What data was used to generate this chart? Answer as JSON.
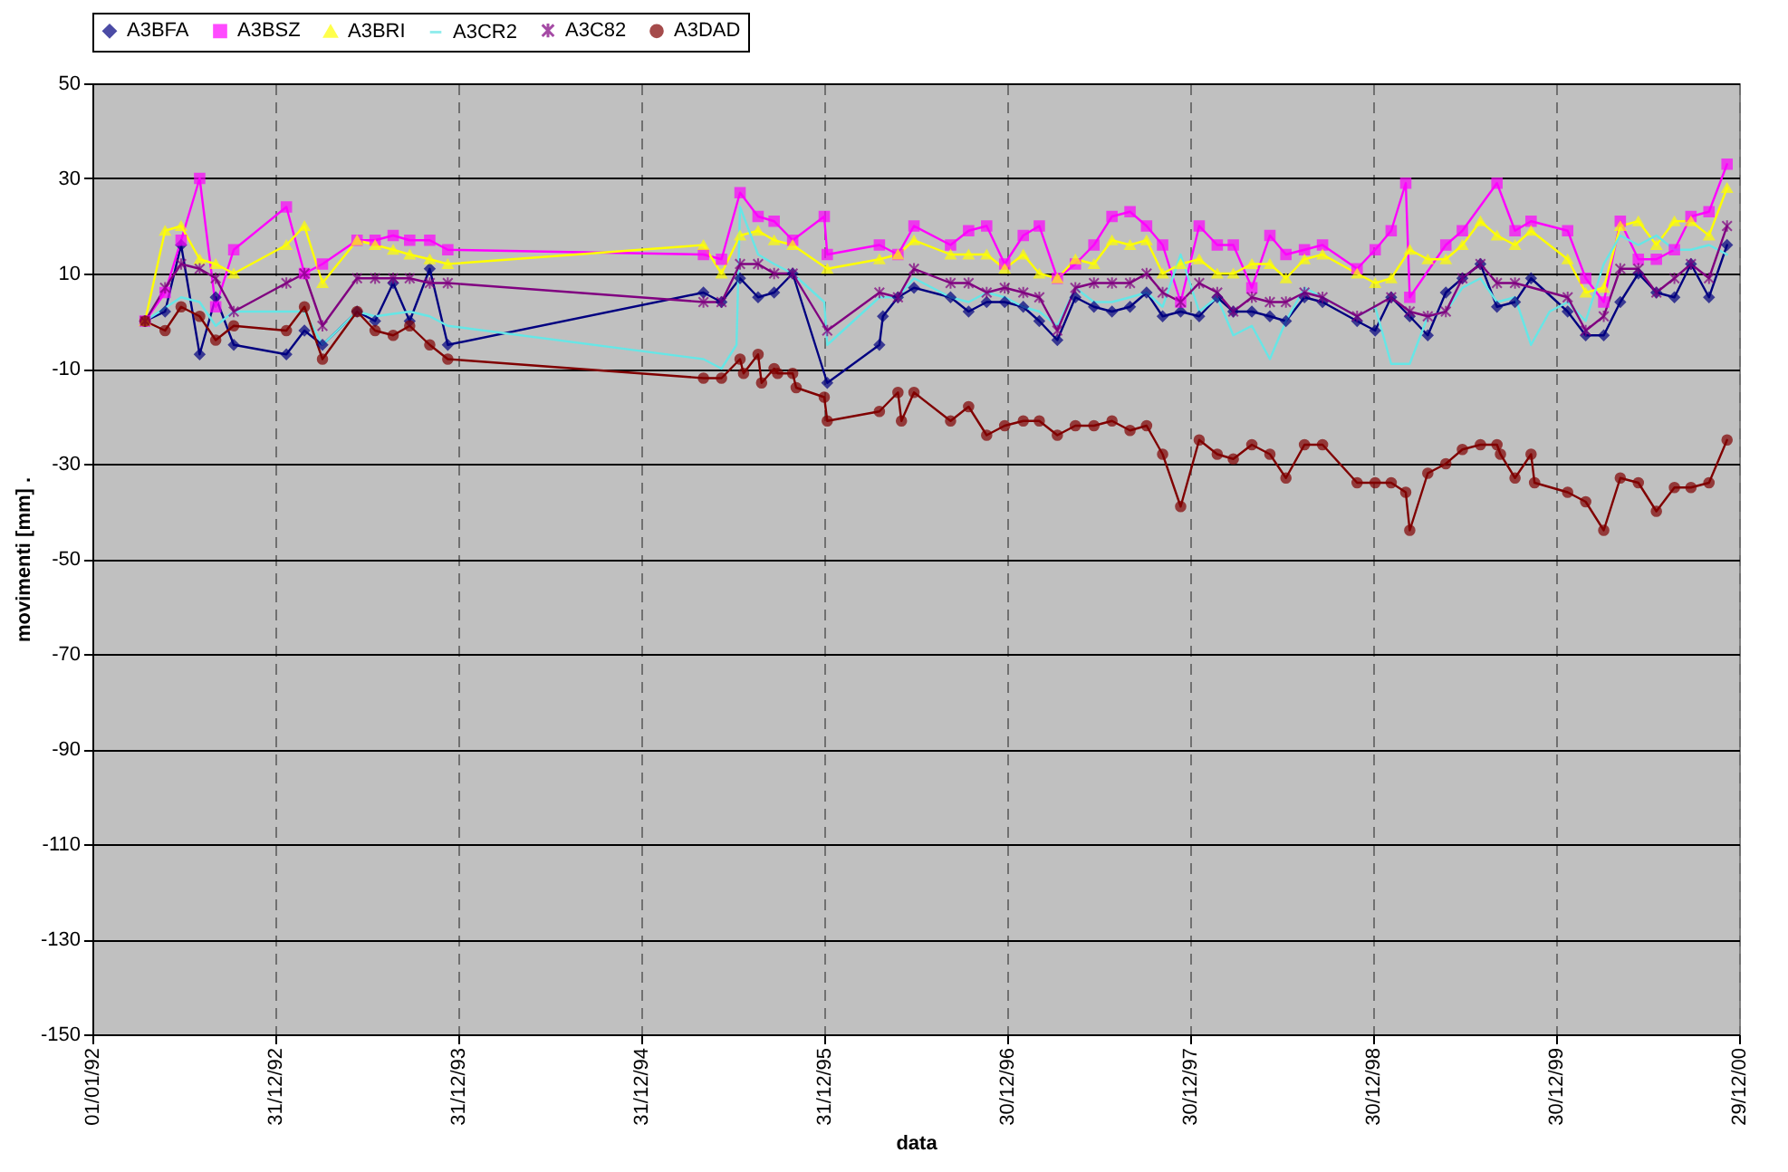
{
  "chart_data": {
    "type": "line",
    "xlabel": "data",
    "ylabel": "movimenti [mm] .",
    "legend": "top",
    "grid": true,
    "xlim": [
      "1992-01-01",
      "2000-12-29"
    ],
    "xticks": [
      {
        "value": "1992-01-01",
        "label": "01/01/92"
      },
      {
        "value": "1992-12-31",
        "label": "31/12/92"
      },
      {
        "value": "1993-12-31",
        "label": "31/12/93"
      },
      {
        "value": "1994-12-31",
        "label": "31/12/94"
      },
      {
        "value": "1995-12-31",
        "label": "31/12/95"
      },
      {
        "value": "1996-12-30",
        "label": "30/12/96"
      },
      {
        "value": "1997-12-30",
        "label": "30/12/97"
      },
      {
        "value": "1998-12-30",
        "label": "30/12/98"
      },
      {
        "value": "1999-12-30",
        "label": "30/12/99"
      },
      {
        "value": "2000-12-29",
        "label": "29/12/00"
      }
    ],
    "ylim": [
      -150,
      50
    ],
    "yticks": [
      -150,
      -130,
      -110,
      -90,
      -70,
      -50,
      -30,
      -10,
      10,
      30,
      50
    ],
    "series": [
      {
        "name": "A3BFA",
        "color": "#000080",
        "marker": "diamond",
        "x": [
          "1992-04-15",
          "1992-05-25",
          "1992-06-26",
          "1992-08-02",
          "1992-09-03",
          "1992-10-09",
          "1993-01-22",
          "1993-02-27",
          "1993-04-04",
          "1993-06-12",
          "1993-07-18",
          "1993-08-23",
          "1993-09-25",
          "1993-11-04",
          "1993-12-10",
          "1995-05-04",
          "1995-06-09",
          "1995-07-16",
          "1995-08-21",
          "1995-09-22",
          "1995-10-29",
          "1996-01-06",
          "1996-04-19",
          "1996-04-26",
          "1996-05-26",
          "1996-06-27",
          "1996-09-08",
          "1996-10-14",
          "1996-11-19",
          "1996-12-25",
          "1997-01-31",
          "1997-03-04",
          "1997-04-09",
          "1997-05-15",
          "1997-06-21",
          "1997-07-27",
          "1997-09-01",
          "1997-10-04",
          "1997-11-05",
          "1997-12-11",
          "1998-01-17",
          "1998-02-22",
          "1998-03-26",
          "1998-05-02",
          "1998-06-07",
          "1998-07-09",
          "1998-08-15",
          "1998-09-20",
          "1998-11-28",
          "1999-01-03",
          "1999-02-04",
          "1999-03-13",
          "1999-04-18",
          "1999-05-24",
          "1999-06-26",
          "1999-08-01",
          "1999-09-03",
          "1999-10-09",
          "1999-11-10",
          "2000-01-22",
          "2000-02-27",
          "2000-04-03",
          "2000-05-06",
          "2000-06-11",
          "2000-07-17",
          "2000-08-22",
          "2000-09-24",
          "2000-10-30",
          "2000-12-05"
        ],
        "values": [
          0,
          2,
          16,
          -7,
          5,
          -5,
          -7,
          -2,
          -5,
          2,
          0,
          8,
          0,
          11,
          -5,
          6,
          4,
          9,
          5,
          6,
          10,
          -13,
          -5,
          1,
          5,
          7,
          5,
          2,
          4,
          4,
          3,
          0,
          -4,
          5,
          3,
          2,
          3,
          6,
          1,
          2,
          1,
          5,
          2,
          2,
          1,
          0,
          5,
          4,
          0,
          -2,
          5,
          1,
          -3,
          6,
          9,
          12,
          3,
          4,
          9,
          2,
          -3,
          -3,
          4,
          10,
          6,
          5,
          12,
          5,
          16
        ]
      },
      {
        "name": "A3BSZ",
        "color": "#ff00ff",
        "marker": "square",
        "x": [
          "1992-04-15",
          "1992-05-25",
          "1992-06-26",
          "1992-08-02",
          "1992-09-03",
          "1992-10-09",
          "1993-01-22",
          "1993-02-27",
          "1993-04-04",
          "1993-06-12",
          "1993-07-18",
          "1993-08-23",
          "1993-09-25",
          "1993-11-04",
          "1993-12-10",
          "1995-05-04",
          "1995-06-09",
          "1995-07-16",
          "1995-08-21",
          "1995-09-22",
          "1995-10-29",
          "1995-12-31",
          "1996-01-06",
          "1996-04-19",
          "1996-05-26",
          "1996-06-27",
          "1996-09-08",
          "1996-10-14",
          "1996-11-19",
          "1996-12-25",
          "1997-01-31",
          "1997-03-04",
          "1997-04-09",
          "1997-05-15",
          "1997-06-21",
          "1997-07-27",
          "1997-09-01",
          "1997-10-04",
          "1997-11-05",
          "1997-12-11",
          "1998-01-17",
          "1998-02-22",
          "1998-03-26",
          "1998-05-02",
          "1998-06-07",
          "1998-07-09",
          "1998-08-15",
          "1998-09-20",
          "1998-11-28",
          "1999-01-03",
          "1999-02-04",
          "1999-03-05",
          "1999-03-13",
          "1999-05-24",
          "1999-06-26",
          "1999-09-03",
          "1999-10-09",
          "1999-11-10",
          "2000-01-22",
          "2000-02-27",
          "2000-04-03",
          "2000-05-06",
          "2000-06-11",
          "2000-07-17",
          "2000-08-22",
          "2000-09-24",
          "2000-10-30",
          "2000-12-05"
        ],
        "values": [
          0,
          6,
          17,
          30,
          3,
          15,
          24,
          10,
          12,
          17,
          17,
          18,
          17,
          17,
          15,
          14,
          13,
          27,
          22,
          21,
          17,
          22,
          14,
          16,
          14,
          20,
          16,
          19,
          20,
          12,
          18,
          20,
          9,
          12,
          16,
          22,
          23,
          20,
          16,
          4,
          20,
          16,
          16,
          7,
          18,
          14,
          15,
          16,
          11,
          15,
          19,
          29,
          5,
          16,
          19,
          29,
          19,
          21,
          19,
          9,
          4,
          21,
          13,
          13,
          15,
          22,
          23,
          33
        ]
      },
      {
        "name": "A3BRI",
        "color": "#ffff00",
        "marker": "triangle",
        "x": [
          "1992-04-15",
          "1992-05-25",
          "1992-06-26",
          "1992-08-02",
          "1992-09-03",
          "1992-10-09",
          "1993-01-22",
          "1993-02-27",
          "1993-04-04",
          "1993-06-12",
          "1993-07-18",
          "1993-08-23",
          "1993-09-25",
          "1993-11-04",
          "1993-12-10",
          "1995-05-04",
          "1995-06-09",
          "1995-07-16",
          "1995-08-21",
          "1995-09-22",
          "1995-10-29",
          "1996-01-06",
          "1996-04-19",
          "1996-05-26",
          "1996-06-27",
          "1996-09-08",
          "1996-10-14",
          "1996-11-19",
          "1996-12-25",
          "1997-01-31",
          "1997-03-04",
          "1997-04-09",
          "1997-05-15",
          "1997-06-21",
          "1997-07-27",
          "1997-09-01",
          "1997-10-04",
          "1997-11-05",
          "1997-12-11",
          "1998-01-17",
          "1998-02-22",
          "1998-03-26",
          "1998-05-02",
          "1998-06-07",
          "1998-07-09",
          "1998-08-15",
          "1998-09-20",
          "1998-11-28",
          "1999-01-03",
          "1999-02-04",
          "1999-03-13",
          "1999-04-18",
          "1999-05-24",
          "1999-06-26",
          "1999-08-01",
          "1999-09-03",
          "1999-10-09",
          "1999-11-10",
          "2000-01-22",
          "2000-02-27",
          "2000-04-03",
          "2000-05-06",
          "2000-06-11",
          "2000-07-17",
          "2000-08-22",
          "2000-09-24",
          "2000-10-30",
          "2000-12-05"
        ],
        "values": [
          0,
          19,
          20,
          13,
          12,
          10,
          16,
          20,
          8,
          17,
          16,
          15,
          14,
          13,
          12,
          16,
          10,
          18,
          19,
          17,
          16,
          11,
          13,
          14,
          17,
          14,
          14,
          14,
          11,
          14,
          10,
          9,
          13,
          12,
          17,
          16,
          17,
          10,
          12,
          13,
          10,
          10,
          12,
          12,
          9,
          13,
          14,
          10,
          8,
          9,
          15,
          13,
          13,
          16,
          21,
          18,
          16,
          19,
          13,
          6,
          7,
          20,
          21,
          16,
          21,
          21,
          18,
          28
        ]
      },
      {
        "name": "A3CR2",
        "color": "#66e6e6",
        "marker": "none",
        "x": [
          "1992-04-15",
          "1992-06-26",
          "1992-08-02",
          "1992-09-03",
          "1992-10-09",
          "1993-01-22",
          "1993-02-27",
          "1993-04-04",
          "1993-06-12",
          "1993-07-18",
          "1993-09-25",
          "1993-11-04",
          "1993-12-10",
          "1995-05-04",
          "1995-06-09",
          "1995-07-09",
          "1995-07-16",
          "1995-08-21",
          "1995-09-22",
          "1995-10-29",
          "1995-12-31",
          "1996-01-06",
          "1996-04-19",
          "1996-05-26",
          "1996-06-27",
          "1996-09-08",
          "1996-10-14",
          "1996-11-19",
          "1996-12-25",
          "1997-01-31",
          "1997-03-04",
          "1997-04-09",
          "1997-05-15",
          "1997-06-21",
          "1997-07-27",
          "1997-09-01",
          "1997-10-04",
          "1997-11-05",
          "1997-12-11",
          "1998-01-17",
          "1998-02-22",
          "1998-03-26",
          "1998-05-02",
          "1998-06-07",
          "1998-07-09",
          "1998-08-15",
          "1998-09-20",
          "1998-11-28",
          "1999-01-03",
          "1999-02-04",
          "1999-03-13",
          "1999-04-18",
          "1999-05-24",
          "1999-06-26",
          "1999-08-01",
          "1999-09-03",
          "1999-10-09",
          "1999-11-10",
          "1999-12-17",
          "2000-01-22",
          "2000-02-27",
          "2000-04-03",
          "2000-05-06",
          "2000-06-11",
          "2000-07-17",
          "2000-08-22",
          "2000-09-24",
          "2000-10-30",
          "2000-12-05"
        ],
        "values": [
          0,
          5,
          4,
          -1,
          2,
          2,
          2,
          -5,
          2,
          1,
          2,
          1,
          -1,
          -8,
          -10,
          -5,
          24,
          14,
          12,
          10,
          4,
          -5,
          5,
          5,
          9,
          5,
          4,
          6,
          5,
          3,
          2,
          -1,
          7,
          4,
          4,
          5,
          6,
          3,
          14,
          2,
          5,
          -3,
          -1,
          -8,
          0,
          7,
          5,
          1,
          3,
          -9,
          -9,
          1,
          2,
          7,
          9,
          4,
          5,
          -5,
          2,
          4,
          0,
          12,
          18,
          16,
          18,
          15,
          15,
          16,
          14
        ]
      },
      {
        "name": "A3C82",
        "color": "#800080",
        "marker": "cross",
        "x": [
          "1992-04-15",
          "1992-05-25",
          "1992-06-26",
          "1992-08-02",
          "1992-09-03",
          "1992-10-09",
          "1993-01-22",
          "1993-02-27",
          "1993-04-04",
          "1993-06-12",
          "1993-07-18",
          "1993-08-23",
          "1993-09-25",
          "1993-11-04",
          "1993-12-10",
          "1995-05-04",
          "1995-06-09",
          "1995-07-16",
          "1995-08-21",
          "1995-09-22",
          "1995-10-29",
          "1996-01-06",
          "1996-04-19",
          "1996-05-26",
          "1996-06-27",
          "1996-09-08",
          "1996-10-14",
          "1996-11-19",
          "1996-12-25",
          "1997-01-31",
          "1997-03-04",
          "1997-04-09",
          "1997-05-15",
          "1997-06-21",
          "1997-07-27",
          "1997-09-01",
          "1997-10-04",
          "1997-11-05",
          "1997-12-11",
          "1998-01-17",
          "1998-02-22",
          "1998-03-26",
          "1998-05-02",
          "1998-06-07",
          "1998-07-09",
          "1998-08-15",
          "1998-09-20",
          "1998-11-28",
          "1999-02-04",
          "1999-03-13",
          "1999-04-18",
          "1999-05-24",
          "1999-06-26",
          "1999-08-01",
          "1999-09-03",
          "1999-10-09",
          "2000-01-22",
          "2000-02-27",
          "2000-04-03",
          "2000-05-06",
          "2000-06-11",
          "2000-07-17",
          "2000-08-22",
          "2000-09-24",
          "2000-10-30",
          "2000-12-05"
        ],
        "values": [
          0,
          7,
          12,
          11,
          9,
          2,
          8,
          10,
          -1,
          9,
          9,
          9,
          9,
          8,
          8,
          4,
          4,
          12,
          12,
          10,
          10,
          -2,
          6,
          5,
          11,
          8,
          8,
          6,
          7,
          6,
          5,
          -2,
          7,
          8,
          8,
          8,
          10,
          6,
          4,
          8,
          6,
          2,
          5,
          4,
          4,
          6,
          5,
          1,
          5,
          2,
          1,
          2,
          9,
          12,
          8,
          8,
          5,
          -2,
          1,
          11,
          11,
          6,
          9,
          12,
          9,
          20
        ]
      },
      {
        "name": "A3DAD",
        "color": "#800000",
        "marker": "circle",
        "x": [
          "1992-04-15",
          "1992-05-25",
          "1992-06-26",
          "1992-08-02",
          "1992-09-03",
          "1992-10-09",
          "1993-01-22",
          "1993-02-27",
          "1993-04-04",
          "1993-06-12",
          "1993-07-18",
          "1993-08-23",
          "1993-09-25",
          "1993-11-04",
          "1993-12-10",
          "1995-05-04",
          "1995-06-09",
          "1995-07-16",
          "1995-07-23",
          "1995-08-21",
          "1995-08-28",
          "1995-09-22",
          "1995-09-29",
          "1995-10-29",
          "1995-11-05",
          "1995-12-31",
          "1996-01-06",
          "1996-04-19",
          "1996-05-26",
          "1996-06-02",
          "1996-06-27",
          "1996-09-08",
          "1996-10-14",
          "1996-11-19",
          "1996-12-25",
          "1997-01-31",
          "1997-03-04",
          "1997-04-09",
          "1997-05-15",
          "1997-06-21",
          "1997-07-27",
          "1997-09-01",
          "1997-10-04",
          "1997-11-05",
          "1997-12-11",
          "1998-01-17",
          "1998-02-22",
          "1998-03-26",
          "1998-05-02",
          "1998-06-07",
          "1998-07-09",
          "1998-08-15",
          "1998-09-20",
          "1998-11-28",
          "1999-01-03",
          "1999-02-04",
          "1999-03-05",
          "1999-03-13",
          "1999-04-18",
          "1999-05-24",
          "1999-06-26",
          "1999-08-01",
          "1999-09-03",
          "1999-09-10",
          "1999-10-09",
          "1999-11-10",
          "1999-11-17",
          "2000-01-22",
          "2000-02-27",
          "2000-04-03",
          "2000-05-06",
          "2000-06-11",
          "2000-07-17",
          "2000-08-22",
          "2000-09-24",
          "2000-10-30",
          "2000-12-05"
        ],
        "values": [
          0,
          -2,
          3,
          1,
          -4,
          -1,
          -2,
          3,
          -8,
          2,
          -2,
          -3,
          -1,
          -5,
          -8,
          -12,
          -12,
          -8,
          -11,
          -7,
          -13,
          -10,
          -11,
          -11,
          -14,
          -16,
          -21,
          -19,
          -15,
          -21,
          -15,
          -21,
          -18,
          -24,
          -22,
          -21,
          -21,
          -24,
          -22,
          -22,
          -21,
          -23,
          -22,
          -28,
          -39,
          -25,
          -28,
          -29,
          -26,
          -28,
          -33,
          -26,
          -26,
          -34,
          -34,
          -34,
          -36,
          -44,
          -32,
          -30,
          -27,
          -26,
          -26,
          -28,
          -33,
          -28,
          -34,
          -36,
          -38,
          -44,
          -33,
          -34,
          -40,
          -35,
          -35,
          -34,
          -25
        ]
      }
    ]
  }
}
